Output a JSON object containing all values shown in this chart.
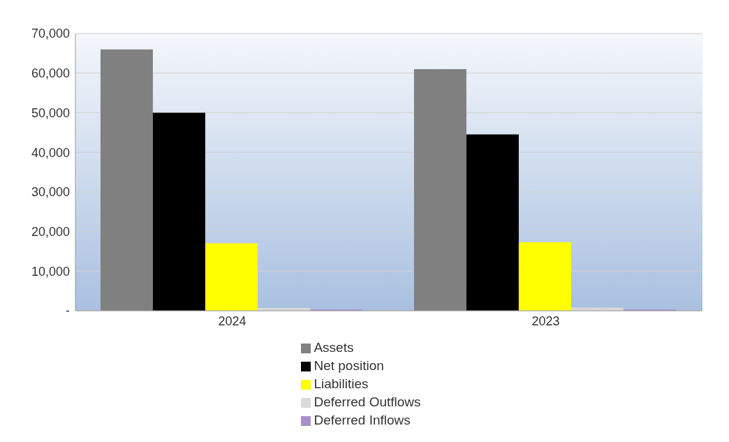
{
  "chart_data": {
    "type": "bar",
    "categories": [
      "2024",
      "2023"
    ],
    "series": [
      {
        "name": "Assets",
        "color": "#808080",
        "values": [
          66000,
          61000
        ]
      },
      {
        "name": "Net position",
        "color": "#000000",
        "values": [
          50000,
          44500
        ]
      },
      {
        "name": "Liabilities",
        "color": "#ffff00",
        "values": [
          17000,
          17300
        ]
      },
      {
        "name": "Deferred Outflows",
        "color": "#d9d9d9",
        "values": [
          700,
          800
        ]
      },
      {
        "name": "Deferred Inflows",
        "color": "#a692c8",
        "values": [
          300,
          300
        ]
      }
    ],
    "ylim": [
      0,
      70000
    ],
    "yticks": [
      {
        "value": 0,
        "label": "-"
      },
      {
        "value": 10000,
        "label": "10,000"
      },
      {
        "value": 20000,
        "label": "20,000"
      },
      {
        "value": 30000,
        "label": "30,000"
      },
      {
        "value": 40000,
        "label": "40,000"
      },
      {
        "value": 50000,
        "label": "50,000"
      },
      {
        "value": 60000,
        "label": "60,000"
      },
      {
        "value": 70000,
        "label": "70,000"
      }
    ],
    "grid": "y",
    "legend": "bottom"
  }
}
